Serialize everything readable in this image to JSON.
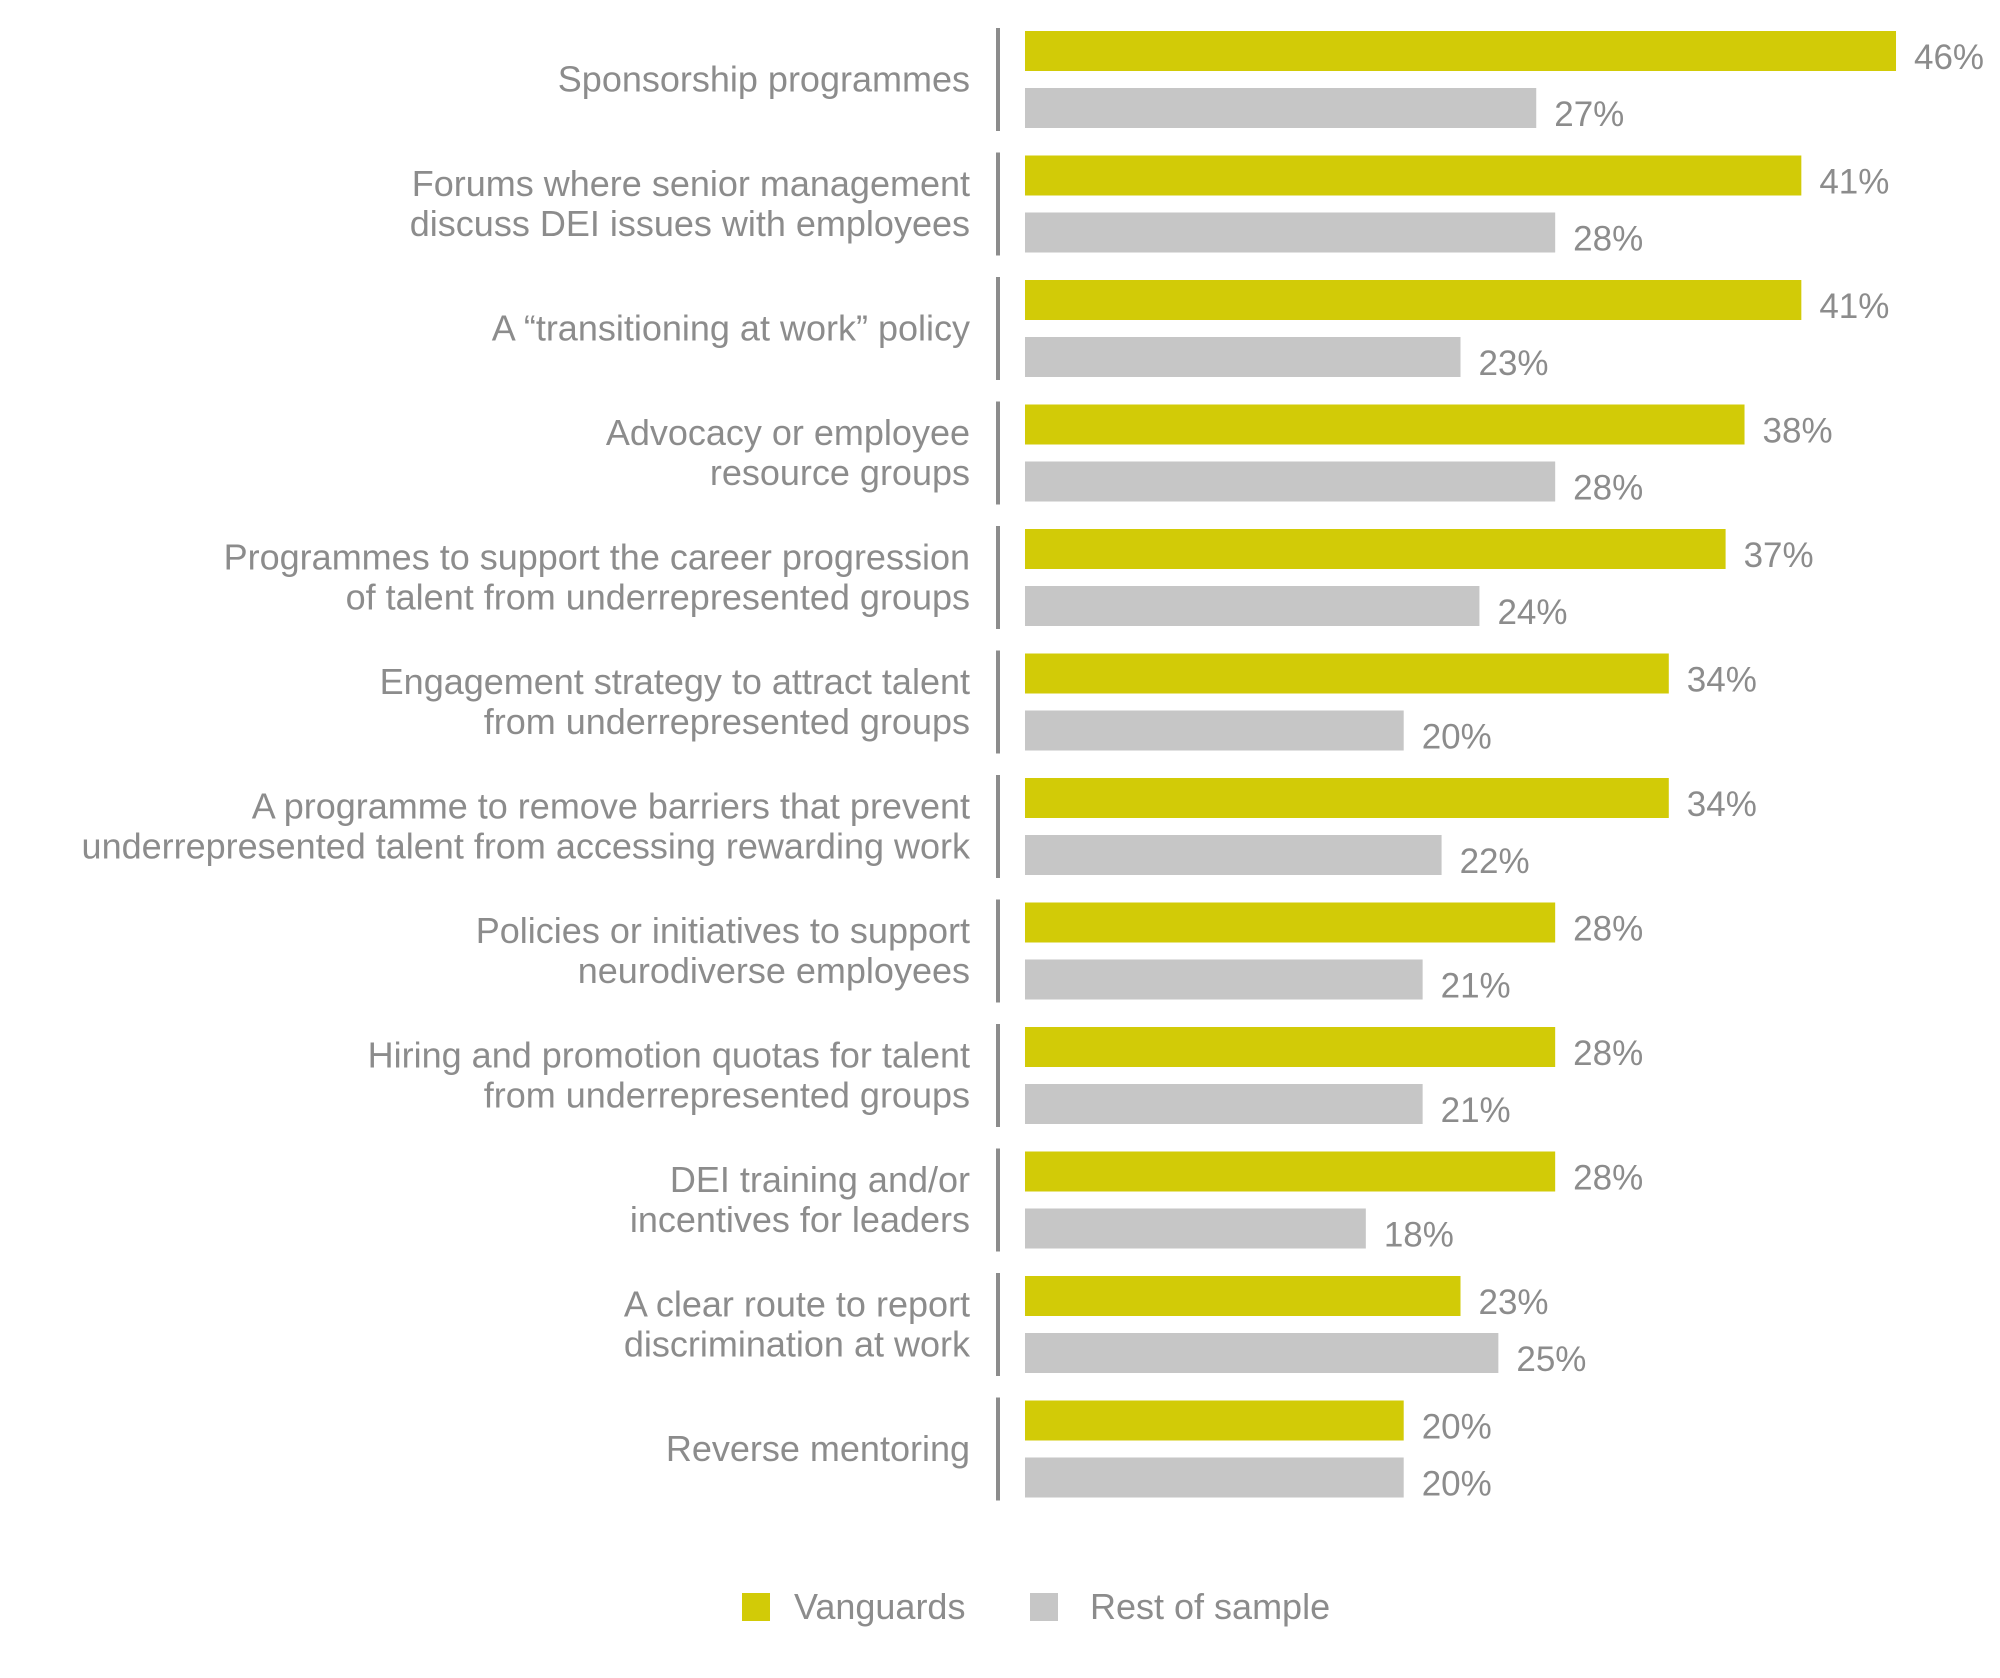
{
  "chart_data": {
    "type": "bar",
    "orientation": "horizontal",
    "categories": [
      [
        "Sponsorship programmes"
      ],
      [
        "Forums where senior management",
        "discuss DEI issues with employees"
      ],
      [
        "A “transitioning at work” policy"
      ],
      [
        "Advocacy or employee",
        "resource groups"
      ],
      [
        "Programmes to support the career progression",
        "of talent from underrepresented groups"
      ],
      [
        "Engagement strategy to attract talent",
        "from underrepresented groups"
      ],
      [
        "A programme to remove barriers that prevent",
        "underrepresented talent from accessing rewarding work"
      ],
      [
        "Policies or initiatives to support",
        "neurodiverse employees"
      ],
      [
        "Hiring and promotion quotas for talent",
        "from underrepresented groups"
      ],
      [
        "DEI training and/or",
        "incentives for leaders"
      ],
      [
        "A clear route to report",
        "discrimination at work"
      ],
      [
        "Reverse mentoring"
      ]
    ],
    "series": [
      {
        "name": "Vanguards",
        "color": "#d2cb07",
        "values": [
          46,
          41,
          41,
          38,
          37,
          34,
          34,
          28,
          28,
          28,
          23,
          20
        ],
        "labels": [
          "46%",
          "41%",
          "41%",
          "38%",
          "37%",
          "34%",
          "34%",
          "28%",
          "28%",
          "28%",
          "23%",
          "20%"
        ]
      },
      {
        "name": "Rest of sample",
        "color": "#c6c6c6",
        "values": [
          27,
          28,
          23,
          28,
          24,
          20,
          22,
          21,
          21,
          18,
          25,
          20
        ],
        "labels": [
          "27%",
          "28%",
          "23%",
          "28%",
          "24%",
          "20%",
          "22%",
          "21%",
          "21%",
          "18%",
          "25%",
          "20%"
        ]
      }
    ],
    "xlim": [
      0,
      46
    ],
    "grid": false,
    "legend_position": "bottom-center"
  }
}
